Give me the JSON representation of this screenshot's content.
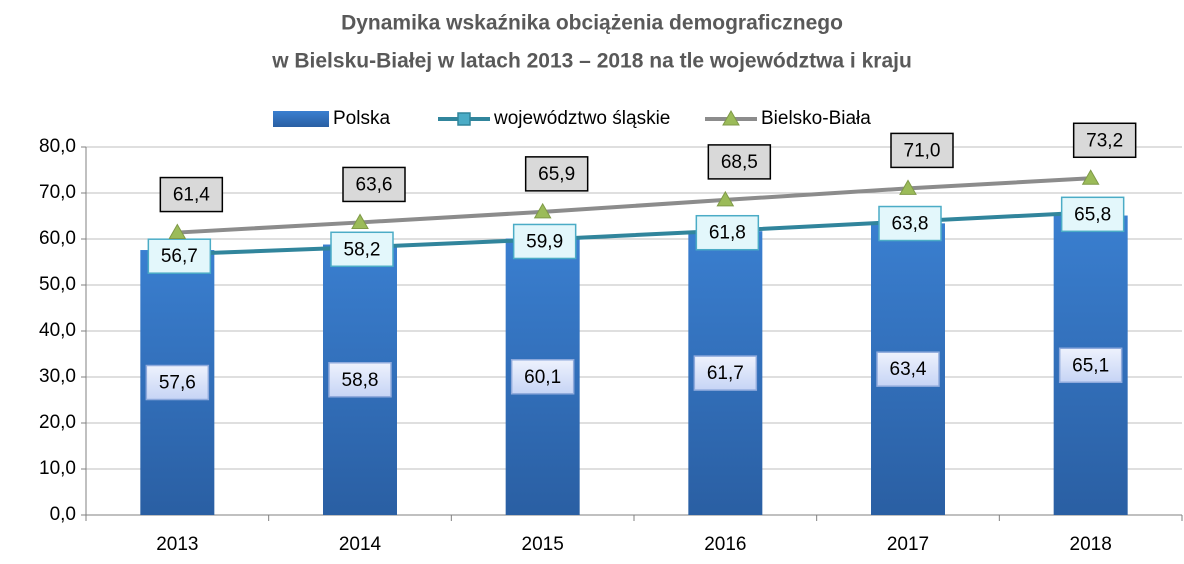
{
  "chart_data": {
    "type": "bar-line",
    "title": [
      "Dynamika wskaźnika obciążenia demograficznego",
      "w Bielsku-Białej w latach 2013 – 2018 na tle województwa i kraju"
    ],
    "categories": [
      "2013",
      "2014",
      "2015",
      "2016",
      "2017",
      "2018"
    ],
    "series": [
      {
        "name": "Polska",
        "type": "bar",
        "color": "#2f6fbf",
        "values": [
          57.6,
          58.8,
          60.1,
          61.7,
          63.4,
          65.1
        ],
        "value_labels": [
          "57,6",
          "58,8",
          "60,1",
          "61,7",
          "63,4",
          "65,1"
        ]
      },
      {
        "name": "województwo śląskie",
        "type": "line",
        "color": "#31859c",
        "values": [
          56.7,
          58.2,
          59.9,
          61.8,
          63.8,
          65.8
        ],
        "value_labels": [
          "56,7",
          "58,2",
          "59,9",
          "61,8",
          "63,8",
          "65,8"
        ]
      },
      {
        "name": "Bielsko-Biała",
        "type": "line",
        "color": "#8c8c8c",
        "marker_color": "#9bbb59",
        "values": [
          61.4,
          63.6,
          65.9,
          68.5,
          71.0,
          73.2
        ],
        "value_labels": [
          "61,4",
          "63,6",
          "65,9",
          "68,5",
          "71,0",
          "73,2"
        ]
      }
    ],
    "ylim": [
      0,
      80
    ],
    "yticks": [
      {
        "value": 0,
        "label": "0,0"
      },
      {
        "value": 10,
        "label": "10,0"
      },
      {
        "value": 20,
        "label": "20,0"
      },
      {
        "value": 30,
        "label": "30,0"
      },
      {
        "value": 40,
        "label": "40,0"
      },
      {
        "value": 50,
        "label": "50,0"
      },
      {
        "value": 60,
        "label": "60,0"
      },
      {
        "value": 70,
        "label": "70,0"
      },
      {
        "value": 80,
        "label": "80,0"
      }
    ],
    "grid": true,
    "legend": "top"
  }
}
